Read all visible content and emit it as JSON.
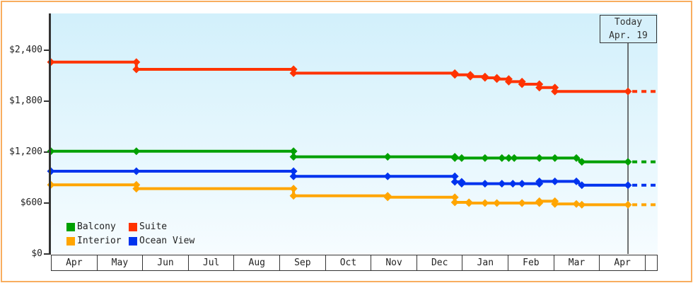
{
  "page": {
    "background": "#ffffff",
    "border_color": "#f8ad5e"
  },
  "today_box": {
    "line1": "Today",
    "line2": "Apr. 19"
  },
  "legend": {
    "items": [
      {
        "label": "Balcony",
        "color": "#00a000"
      },
      {
        "label": "Suite",
        "color": "#ff3300"
      },
      {
        "label": "Interior",
        "color": "#ffa500"
      },
      {
        "label": "Ocean View",
        "color": "#0033ee"
      }
    ]
  },
  "chart_data": {
    "type": "line",
    "title": "",
    "currency": "USD",
    "x_axis": {
      "months": [
        "Apr",
        "May",
        "Jun",
        "Jul",
        "Aug",
        "Sep",
        "Oct",
        "Nov",
        "Dec",
        "Jan",
        "Feb",
        "Mar",
        "Apr"
      ]
    },
    "y_axis": {
      "tick_labels": [
        "$0",
        "$600",
        "$1,200",
        "$1,800",
        "$2,400"
      ],
      "tick_values": [
        0,
        600,
        1200,
        1800,
        2400
      ],
      "range": [
        0,
        2833
      ],
      "grid": false
    },
    "legend_position": "inside-bottom-left",
    "today": {
      "label": "Today",
      "date": "Apr. 19",
      "month_position": 12.63
    },
    "series": [
      {
        "name": "Suite",
        "color": "#ff3300",
        "current": 1915,
        "points": [
          [
            0,
            2260
          ],
          [
            1.87,
            2260
          ],
          [
            1.87,
            2175
          ],
          [
            5.31,
            2175
          ],
          [
            5.31,
            2130
          ],
          [
            8.84,
            2130
          ],
          [
            8.84,
            2110
          ],
          [
            9.18,
            2110
          ],
          [
            9.18,
            2090
          ],
          [
            9.5,
            2090
          ],
          [
            9.5,
            2075
          ],
          [
            9.76,
            2075
          ],
          [
            9.76,
            2060
          ],
          [
            10.02,
            2060
          ],
          [
            10.02,
            2030
          ],
          [
            10.31,
            2030
          ],
          [
            10.31,
            2000
          ],
          [
            10.69,
            2000
          ],
          [
            10.69,
            1960
          ],
          [
            11.03,
            1960
          ],
          [
            11.03,
            1915
          ],
          [
            12.63,
            1915
          ]
        ]
      },
      {
        "name": "Balcony",
        "color": "#00a000",
        "current": 1085,
        "points": [
          [
            0,
            1210
          ],
          [
            1.87,
            1210
          ],
          [
            5.31,
            1210
          ],
          [
            5.31,
            1145
          ],
          [
            7.37,
            1145
          ],
          [
            8.84,
            1145
          ],
          [
            8.84,
            1130
          ],
          [
            8.99,
            1130
          ],
          [
            9.5,
            1130
          ],
          [
            9.87,
            1130
          ],
          [
            10.02,
            1130
          ],
          [
            10.14,
            1130
          ],
          [
            10.69,
            1130
          ],
          [
            11.03,
            1130
          ],
          [
            11.5,
            1130
          ],
          [
            11.62,
            1085
          ],
          [
            12.63,
            1085
          ]
        ]
      },
      {
        "name": "Ocean View",
        "color": "#0033ee",
        "current": 810,
        "points": [
          [
            0,
            975
          ],
          [
            1.87,
            975
          ],
          [
            5.31,
            975
          ],
          [
            5.31,
            915
          ],
          [
            7.37,
            915
          ],
          [
            8.84,
            915
          ],
          [
            8.84,
            850
          ],
          [
            8.99,
            850
          ],
          [
            8.99,
            828
          ],
          [
            9.5,
            828
          ],
          [
            9.87,
            828
          ],
          [
            10.11,
            828
          ],
          [
            10.31,
            828
          ],
          [
            10.69,
            828
          ],
          [
            10.69,
            855
          ],
          [
            11.03,
            855
          ],
          [
            11.5,
            855
          ],
          [
            11.62,
            810
          ],
          [
            12.63,
            810
          ]
        ]
      },
      {
        "name": "Interior",
        "color": "#ffa500",
        "current": 580,
        "points": [
          [
            0,
            815
          ],
          [
            1.87,
            815
          ],
          [
            1.87,
            770
          ],
          [
            5.31,
            770
          ],
          [
            5.31,
            685
          ],
          [
            7.37,
            685
          ],
          [
            7.37,
            668
          ],
          [
            8.84,
            668
          ],
          [
            8.84,
            608
          ],
          [
            9.15,
            608
          ],
          [
            9.15,
            600
          ],
          [
            9.5,
            600
          ],
          [
            9.76,
            600
          ],
          [
            10.31,
            600
          ],
          [
            10.69,
            600
          ],
          [
            10.69,
            622
          ],
          [
            11.03,
            622
          ],
          [
            11.03,
            590
          ],
          [
            11.5,
            590
          ],
          [
            11.62,
            580
          ],
          [
            12.63,
            580
          ]
        ]
      }
    ]
  }
}
